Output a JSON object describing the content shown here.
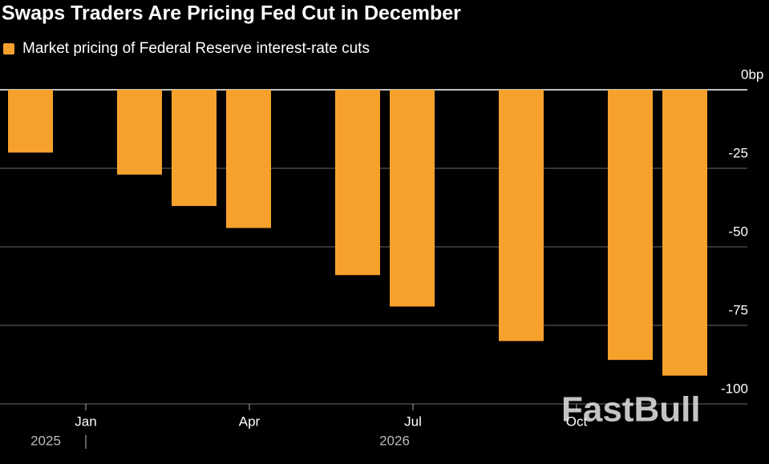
{
  "chart_data": {
    "type": "bar",
    "title": "Swaps Traders Are Pricing Fed Cut in December",
    "categories": [
      null,
      "Jan",
      null,
      null,
      "Apr",
      null,
      null,
      "Jul",
      null,
      null,
      "Oct",
      null,
      null
    ],
    "year_labels": [
      "2025",
      "2026"
    ],
    "series": [
      {
        "name": "Market pricing of Federal Reserve interest-rate cuts",
        "color": "#f7a12d",
        "values": [
          -20,
          null,
          -27,
          -37,
          -44,
          null,
          -59,
          -69,
          null,
          -80,
          null,
          -86,
          -91
        ]
      }
    ],
    "ylim": [
      0,
      -100
    ],
    "yticks": [
      {
        "value": 0,
        "label": "0bp"
      },
      -25,
      -50,
      -75,
      -100
    ],
    "grid": true,
    "watermark": "FastBull"
  }
}
